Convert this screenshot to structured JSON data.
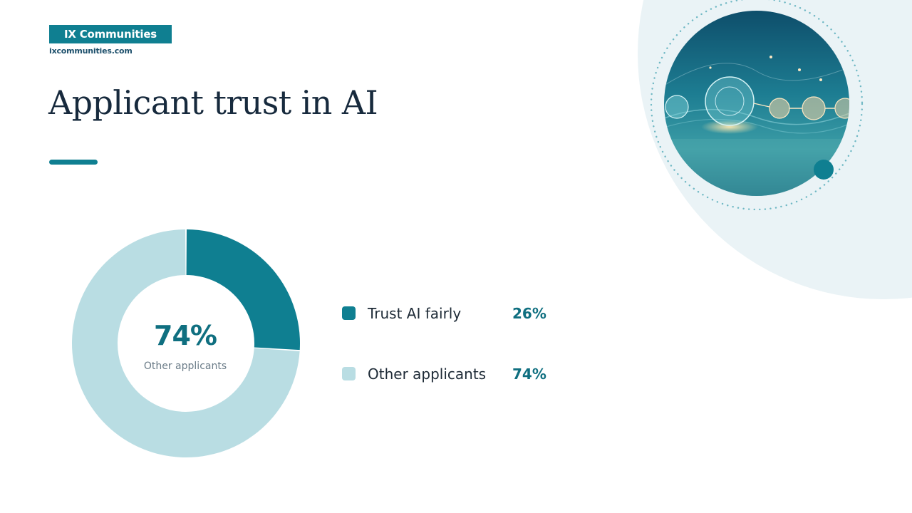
{
  "brand": {
    "name": "IX Communities",
    "url": "ixcommunities.com"
  },
  "colors": {
    "accent": "#0f7f91",
    "light": "#b9dde3",
    "text_dark": "#172a3d",
    "value_teal": "#0f6f80",
    "bg_arc": "#eaf3f6"
  },
  "hero_image": {
    "icon": "ai-network-illustration-icon"
  },
  "chart_data": {
    "type": "pie",
    "donut": true,
    "title": "Applicant trust in AI",
    "categories": [
      "Trust AI fairly",
      "Other applicants"
    ],
    "values": [
      26,
      74
    ],
    "unit": "%",
    "value_labels": [
      "26%",
      "74%"
    ],
    "colors": [
      "#0f7f91",
      "#b9dde3"
    ],
    "center": {
      "value": "74%",
      "label": "Other applicants"
    },
    "legend": {
      "placement": "right",
      "items": [
        {
          "label": "Trust AI fairly",
          "value": "26%"
        },
        {
          "label": "Other applicants",
          "value": "74%"
        }
      ]
    }
  }
}
